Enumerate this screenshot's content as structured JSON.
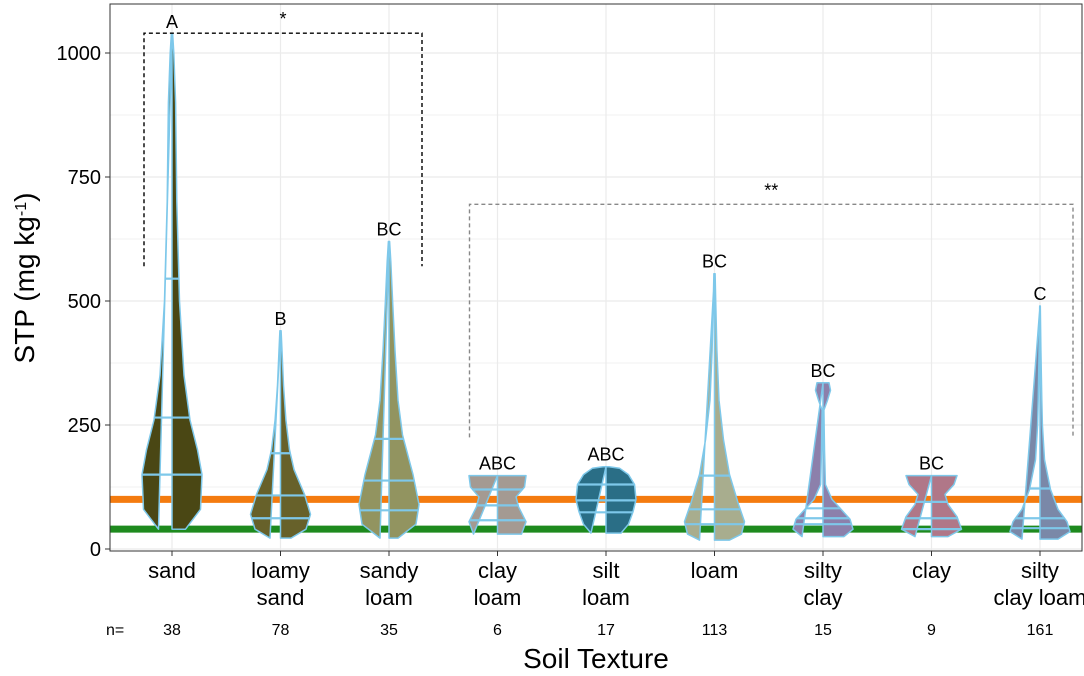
{
  "chart_data": {
    "type": "violin",
    "xlabel": "Soil Texture",
    "ylabel": "STP (mg kg",
    "ylabel_sup": "-1",
    "ylabel_close": ")",
    "ylim": [
      0,
      1000
    ],
    "yticks": [
      0,
      250,
      500,
      750,
      1000
    ],
    "grid": true,
    "n_prefix": "n=",
    "reference_lines": [
      {
        "y": 100,
        "color": "#f47b0f"
      },
      {
        "y": 40,
        "color": "#1e8a1e"
      }
    ],
    "categories": [
      {
        "lines": [
          "sand"
        ],
        "n": "38",
        "letter": "A",
        "fill": "#4a4714",
        "profile": [
          [
            40,
            0.45
          ],
          [
            80,
            0.95
          ],
          [
            150,
            1.0
          ],
          [
            200,
            0.85
          ],
          [
            260,
            0.6
          ],
          [
            350,
            0.4
          ],
          [
            500,
            0.25
          ],
          [
            700,
            0.16
          ],
          [
            900,
            0.12
          ],
          [
            1000,
            0.06
          ],
          [
            1040,
            0.02
          ]
        ],
        "quartiles": [
          150,
          265,
          545
        ]
      },
      {
        "lines": [
          "loamy",
          "sand"
        ],
        "n": "78",
        "letter": "B",
        "fill": "#67612a",
        "profile": [
          [
            22,
            0.35
          ],
          [
            40,
            0.85
          ],
          [
            70,
            1.0
          ],
          [
            110,
            0.8
          ],
          [
            160,
            0.45
          ],
          [
            200,
            0.3
          ],
          [
            260,
            0.18
          ],
          [
            330,
            0.1
          ],
          [
            400,
            0.05
          ],
          [
            440,
            0.02
          ]
        ],
        "quartiles": [
          62,
          108,
          193
        ]
      },
      {
        "lines": [
          "sandy",
          "loam"
        ],
        "n": "35",
        "letter": "BC",
        "fill": "#929460",
        "profile": [
          [
            22,
            0.3
          ],
          [
            50,
            0.9
          ],
          [
            90,
            1.0
          ],
          [
            150,
            0.8
          ],
          [
            230,
            0.45
          ],
          [
            300,
            0.3
          ],
          [
            400,
            0.2
          ],
          [
            500,
            0.12
          ],
          [
            580,
            0.06
          ],
          [
            620,
            0.02
          ]
        ],
        "quartiles": [
          78,
          138,
          222
        ]
      },
      {
        "lines": [
          "clay",
          "loam"
        ],
        "n": "6",
        "letter": "ABC",
        "fill": "#a49a92",
        "profile": [
          [
            30,
            0.8
          ],
          [
            55,
            0.95
          ],
          [
            85,
            0.7
          ],
          [
            105,
            0.62
          ],
          [
            125,
            0.9
          ],
          [
            148,
            0.95
          ]
        ],
        "quartiles": [
          58,
          88,
          120
        ]
      },
      {
        "lines": [
          "silt",
          "loam"
        ],
        "n": "17",
        "letter": "ABC",
        "fill": "#2a6e86",
        "profile": [
          [
            32,
            0.5
          ],
          [
            50,
            0.75
          ],
          [
            75,
            0.9
          ],
          [
            100,
            1.0
          ],
          [
            130,
            0.95
          ],
          [
            150,
            0.75
          ],
          [
            163,
            0.45
          ],
          [
            166,
            0.1
          ]
        ],
        "quartiles": [
          74,
          98,
          130
        ]
      },
      {
        "lines": [
          "loam"
        ],
        "n": "113",
        "letter": "BC",
        "fill": "#a8ad8e",
        "profile": [
          [
            18,
            0.5
          ],
          [
            30,
            0.9
          ],
          [
            55,
            1.0
          ],
          [
            90,
            0.8
          ],
          [
            150,
            0.5
          ],
          [
            220,
            0.3
          ],
          [
            300,
            0.15
          ],
          [
            400,
            0.08
          ],
          [
            500,
            0.04
          ],
          [
            555,
            0.02
          ]
        ],
        "quartiles": [
          50,
          80,
          148
        ]
      },
      {
        "lines": [
          "silty",
          "clay"
        ],
        "n": "15",
        "letter": "BC",
        "fill": "#8c80ab",
        "profile": [
          [
            25,
            0.7
          ],
          [
            40,
            1.0
          ],
          [
            60,
            0.9
          ],
          [
            80,
            0.6
          ],
          [
            100,
            0.3
          ],
          [
            130,
            0.08
          ],
          [
            200,
            0.05
          ],
          [
            280,
            0.03
          ],
          [
            300,
            0.15
          ],
          [
            320,
            0.25
          ],
          [
            335,
            0.2
          ]
        ],
        "quartiles": [
          50,
          62,
          82
        ]
      },
      {
        "lines": [
          "clay"
        ],
        "n": "9",
        "letter": "BC",
        "fill": "#b07788",
        "profile": [
          [
            25,
            0.55
          ],
          [
            40,
            1.0
          ],
          [
            65,
            0.85
          ],
          [
            90,
            0.55
          ],
          [
            110,
            0.45
          ],
          [
            130,
            0.75
          ],
          [
            148,
            0.85
          ]
        ],
        "quartiles": [
          40,
          62,
          95
        ]
      },
      {
        "lines": [
          "silty",
          "clay loam"
        ],
        "n": "161",
        "letter": "C",
        "fill": "#7a88a8",
        "profile": [
          [
            20,
            0.6
          ],
          [
            35,
            1.0
          ],
          [
            55,
            0.9
          ],
          [
            80,
            0.6
          ],
          [
            120,
            0.35
          ],
          [
            180,
            0.15
          ],
          [
            250,
            0.08
          ],
          [
            300,
            0.06
          ],
          [
            400,
            0.03
          ],
          [
            490,
            0.01
          ]
        ],
        "quartiles": [
          42,
          62,
          122
        ]
      }
    ],
    "brackets": [
      {
        "label": "*",
        "from": 0,
        "to": 2,
        "y": 1040,
        "y_left_end": 570,
        "y_right_end": 570,
        "color": "#000000",
        "dash": "4,3"
      },
      {
        "label": "**",
        "from": 3,
        "to": 8,
        "y": 695,
        "y_left_end": 225,
        "y_right_end": 225,
        "color": "#888888",
        "dash": "4,3"
      }
    ]
  }
}
